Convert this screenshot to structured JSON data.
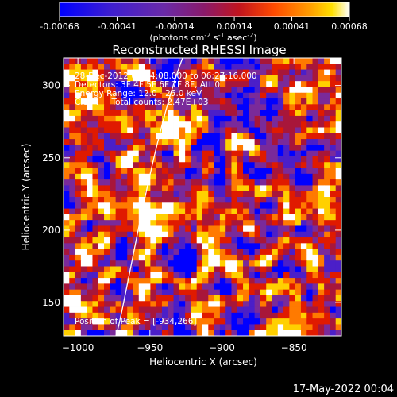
{
  "colorbar": {
    "tick_labels": [
      "-0.00068",
      "-0.00041",
      "-0.00014",
      "0.00014",
      "0.00041",
      "0.00068"
    ],
    "min": -0.00068,
    "max": 0.00068,
    "units_prefix": "(photons cm",
    "units_exp1": "-2",
    "units_mid": " s",
    "units_exp2": "-1",
    "units_mid2": " asec",
    "units_exp3": "-2",
    "units_suffix": ")",
    "palette": [
      "#0000ff",
      "#4b1fc8",
      "#7a2a9a",
      "#a8163a",
      "#e01a00",
      "#ff7a00",
      "#ffd000",
      "#ffffff"
    ]
  },
  "image": {
    "title": "Reconstructed RHESSI Image",
    "info_lines": [
      "28-Dec-2012 06:24:08.000 to 06:27:16.000",
      "Detectors: 3F 4F 5F 6F 7F 8F, Att 0",
      "Energy Range: 12.0 - 25.0 keV",
      "Clean     Total counts: 2.47E+03"
    ],
    "peak_label": "Position of Peak = [-934,266]",
    "peak_x": -934,
    "peak_y": 266
  },
  "axes": {
    "xlabel": "Heliocentric X (arcsec)",
    "ylabel": "Heliocentric Y (arcsec)",
    "xlim": [
      -1010,
      -817
    ],
    "ylim": [
      127,
      319
    ],
    "xticks": [
      "-1000",
      "-950",
      "-900",
      "-850"
    ],
    "yticks": [
      "150",
      "200",
      "250",
      "300"
    ]
  },
  "footer": {
    "timestamp": "17-May-2022 00:04"
  }
}
